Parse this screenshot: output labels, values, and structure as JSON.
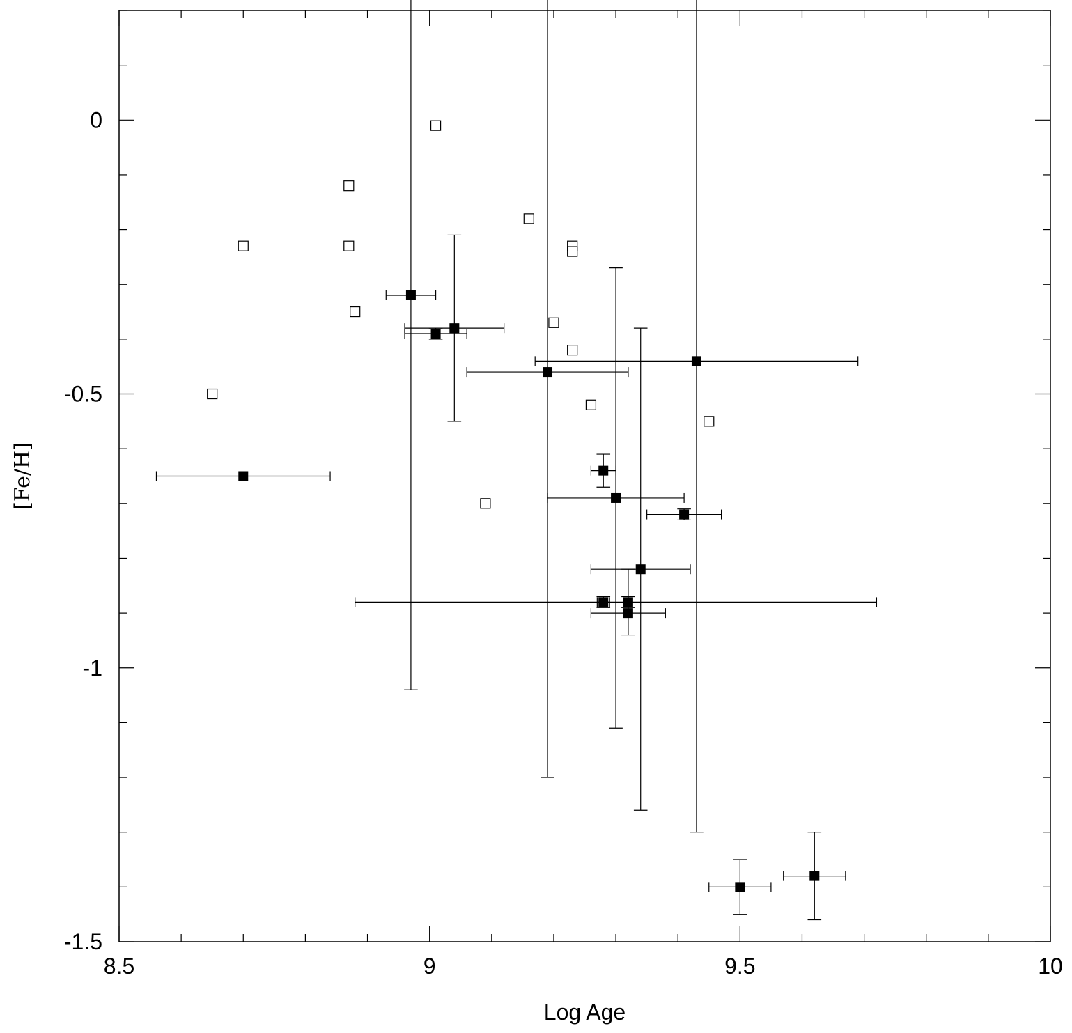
{
  "chart_data": {
    "type": "scatter",
    "title": "",
    "xlabel": "Log Age",
    "ylabel": "[Fe/H]",
    "xlim": [
      8.5,
      10
    ],
    "ylim": [
      -1.5,
      0.2
    ],
    "grid": false,
    "legend": "none",
    "x_ticks": [
      {
        "value": 8.5,
        "label": "8.5"
      },
      {
        "value": 9,
        "label": "9"
      },
      {
        "value": 9.5,
        "label": "9.5"
      },
      {
        "value": 10,
        "label": "10"
      }
    ],
    "y_ticks": [
      {
        "value": 0,
        "label": "0"
      },
      {
        "value": -0.5,
        "label": "-0.5"
      },
      {
        "value": -1,
        "label": "-1"
      },
      {
        "value": -1.5,
        "label": "-1.5"
      }
    ],
    "series": [
      {
        "marker": "open-square",
        "points": [
          {
            "x": 8.65,
            "y": -0.5
          },
          {
            "x": 8.7,
            "y": -0.23
          },
          {
            "x": 8.87,
            "y": -0.12
          },
          {
            "x": 8.87,
            "y": -0.23
          },
          {
            "x": 8.88,
            "y": -0.35
          },
          {
            "x": 9.01,
            "y": -0.01
          },
          {
            "x": 9.09,
            "y": -0.7
          },
          {
            "x": 9.16,
            "y": -0.18
          },
          {
            "x": 9.2,
            "y": -0.37
          },
          {
            "x": 9.23,
            "y": -0.23
          },
          {
            "x": 9.23,
            "y": -0.24
          },
          {
            "x": 9.23,
            "y": -0.42
          },
          {
            "x": 9.26,
            "y": -0.52
          },
          {
            "x": 9.45,
            "y": -0.55
          }
        ]
      },
      {
        "marker": "filled-square",
        "points": [
          {
            "x": 8.7,
            "y": -0.65,
            "xerr": [
              0.14,
              0.14
            ],
            "yerr": [
              0,
              0
            ]
          },
          {
            "x": 8.97,
            "y": -0.32,
            "xerr": [
              0.04,
              0.04
            ],
            "yerr": [
              0.72,
              0.8
            ]
          },
          {
            "x": 9.01,
            "y": -0.39,
            "xerr": [
              0.05,
              0.05
            ],
            "yerr": [
              0.01,
              0.01
            ]
          },
          {
            "x": 9.04,
            "y": -0.38,
            "xerr": [
              0.08,
              0.08
            ],
            "yerr": [
              0.17,
              0.17
            ]
          },
          {
            "x": 9.19,
            "y": -0.46,
            "xerr": [
              0.13,
              0.13
            ],
            "yerr": [
              0.74,
              0.84
            ]
          },
          {
            "x": 9.28,
            "y": -0.64,
            "xerr": [
              0.02,
              0.02
            ],
            "yerr": [
              0.03,
              0.03
            ]
          },
          {
            "x": 9.3,
            "y": -0.69,
            "xerr": [
              0.11,
              0.11
            ],
            "yerr": [
              0.42,
              0.42
            ]
          },
          {
            "x": 9.41,
            "y": -0.72,
            "xerr": [
              0.06,
              0.06
            ],
            "yerr": [
              0.01,
              0.01
            ]
          },
          {
            "x": 9.34,
            "y": -0.82,
            "xerr": [
              0.08,
              0.08
            ],
            "yerr": [
              0.44,
              0.44
            ]
          },
          {
            "x": 9.28,
            "y": -0.88,
            "xerr": [
              0.01,
              0.01
            ],
            "yerr": [
              0.01,
              0.01
            ]
          },
          {
            "x": 9.32,
            "y": -0.88,
            "xerr": [
              0.44,
              0.4
            ],
            "yerr": [
              0.01,
              0.01
            ]
          },
          {
            "x": 9.32,
            "y": -0.9,
            "xerr": [
              0.06,
              0.06
            ],
            "yerr": [
              0.04,
              0.08
            ]
          },
          {
            "x": 9.43,
            "y": -0.44,
            "xerr": [
              0.26,
              0.26
            ],
            "yerr": [
              0.86,
              0.86
            ]
          },
          {
            "x": 9.5,
            "y": -1.4,
            "xerr": [
              0.05,
              0.05
            ],
            "yerr": [
              0.05,
              0.05
            ]
          },
          {
            "x": 9.62,
            "y": -1.38,
            "xerr": [
              0.05,
              0.05
            ],
            "yerr": [
              0.08,
              0.08
            ]
          }
        ]
      }
    ]
  }
}
